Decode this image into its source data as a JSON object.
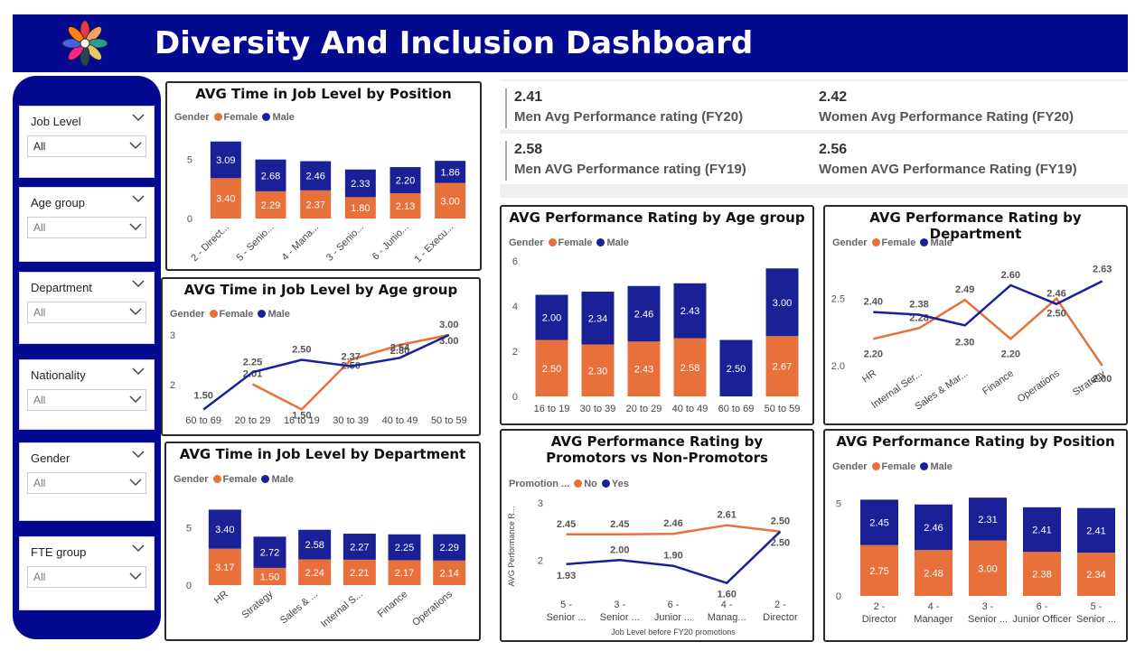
{
  "header": {
    "title": "Diversity And Inclusion Dashboard",
    "logo_icon": "colorful-flower-logo"
  },
  "filters": [
    {
      "label": "Job Level",
      "value": "All"
    },
    {
      "label": "Age group",
      "value": "All"
    },
    {
      "label": "Department",
      "value": "All"
    },
    {
      "label": "Nationality",
      "value": "All"
    },
    {
      "label": "Gender",
      "value": "All"
    },
    {
      "label": "FTE group",
      "value": "All"
    }
  ],
  "kpis": [
    {
      "value": "2.41",
      "label": "Men Avg Performance rating (FY20)"
    },
    {
      "value": "2.42",
      "label": "Women Avg Performance Rating (FY20)"
    },
    {
      "value": "2.58",
      "label": "Men AVG Performance rating (FY19)"
    },
    {
      "value": "2.56",
      "label": "Women AVG Performance Rating (FY19)"
    }
  ],
  "colors": {
    "female": "#e8703a",
    "male": "#1a2196",
    "banner": "#040a8f"
  },
  "legend": {
    "title": "Gender",
    "female": "Female",
    "male": "Male",
    "promo_title": "Promotion ...",
    "no": "No",
    "yes": "Yes"
  },
  "chart_data": [
    {
      "id": "pos_time",
      "type": "bar",
      "stacked": true,
      "title": "AVG Time in Job Level by Position",
      "categories": [
        "2 - Direct...",
        "5 - Senio...",
        "4 - Mana...",
        "3 - Senio...",
        "6 - Junio...",
        "1 - Execu..."
      ],
      "series": [
        {
          "name": "Female",
          "values": [
            3.4,
            2.29,
            2.37,
            1.8,
            2.13,
            3.0
          ]
        },
        {
          "name": "Male",
          "values": [
            3.09,
            2.68,
            2.46,
            2.33,
            2.2,
            1.86
          ]
        }
      ],
      "yticks": [
        "0",
        "5"
      ],
      "ylim": [
        0,
        7
      ]
    },
    {
      "id": "age_time",
      "type": "line",
      "title": "AVG Time in Job Level by Age group",
      "categories": [
        "60 to 69",
        "20 to 29",
        "16 to 19",
        "30 to 39",
        "40 to 49",
        "50 to 59"
      ],
      "series": [
        {
          "name": "Female",
          "values": [
            null,
            2.01,
            1.5,
            2.5,
            2.8,
            3.0
          ]
        },
        {
          "name": "Male",
          "values": [
            1.5,
            2.25,
            2.5,
            2.37,
            2.54,
            3.0
          ]
        }
      ],
      "yticks": [
        "2",
        "3"
      ],
      "ylim": [
        1.4,
        3.0
      ]
    },
    {
      "id": "dept_time",
      "type": "bar",
      "stacked": true,
      "title": "AVG Time in Job Level by Department",
      "categories": [
        "HR",
        "Strategy",
        "Sales & ...",
        "Internal S...",
        "Finance",
        "Operations"
      ],
      "series": [
        {
          "name": "Female",
          "values": [
            3.17,
            1.5,
            2.24,
            2.21,
            2.17,
            2.14
          ]
        },
        {
          "name": "Male",
          "values": [
            3.4,
            2.72,
            2.58,
            2.27,
            2.25,
            2.29
          ]
        }
      ],
      "yticks": [
        "0",
        "5"
      ],
      "ylim": [
        0,
        7
      ]
    },
    {
      "id": "age_perf",
      "type": "bar",
      "stacked": true,
      "title": "AVG Performance Rating by Age group",
      "categories": [
        "16 to 19",
        "30 to 39",
        "20 to 29",
        "40 to 49",
        "60 to 69",
        "50 to 59"
      ],
      "series": [
        {
          "name": "Female",
          "values": [
            2.5,
            2.3,
            2.43,
            2.58,
            0,
            2.67
          ]
        },
        {
          "name": "Male",
          "values": [
            2.0,
            2.34,
            2.46,
            2.43,
            2.5,
            3.0
          ]
        }
      ],
      "yticks": [
        "0",
        "2",
        "4",
        "6"
      ],
      "ylim": [
        0,
        6
      ]
    },
    {
      "id": "dept_perf",
      "type": "line",
      "title": "AVG Performance Rating by Department",
      "categories": [
        "HR",
        "Internal Ser...",
        "Sales & Mar...",
        "Finance",
        "Operations",
        "Strategy"
      ],
      "series": [
        {
          "name": "Female",
          "values": [
            2.2,
            2.28,
            2.49,
            2.2,
            2.5,
            2.0
          ]
        },
        {
          "name": "Male",
          "values": [
            2.4,
            2.38,
            2.3,
            2.6,
            2.46,
            2.63
          ]
        }
      ],
      "yticks": [
        "2.0",
        "2.5"
      ],
      "ylim": [
        2.0,
        2.7
      ]
    },
    {
      "id": "promo_perf",
      "type": "line",
      "title": "AVG Performance Rating by Promotors vs Non-Promotors",
      "xlabel": "Job Level before FY20 promotions",
      "ylabel": "AVG Performance R...",
      "categories": [
        "5 - Senior ...",
        "3 - Senior ...",
        "6 - Junior ...",
        "4 - Manag...",
        "2 - Director"
      ],
      "series": [
        {
          "name": "No",
          "values": [
            2.45,
            2.45,
            2.46,
            2.61,
            2.5
          ]
        },
        {
          "name": "Yes",
          "values": [
            1.93,
            2.0,
            1.9,
            1.6,
            2.5
          ]
        }
      ],
      "yticks": [
        "2",
        "3"
      ],
      "ylim": [
        1.5,
        3.0
      ]
    },
    {
      "id": "pos_perf",
      "type": "bar",
      "stacked": true,
      "title": "AVG Performance Rating by Position",
      "categories": [
        "2 - Director",
        "4 - Manager",
        "3 - Senior ...",
        "6 - Junior Officer",
        "5 - Senior ..."
      ],
      "series": [
        {
          "name": "Female",
          "values": [
            2.75,
            2.48,
            3.0,
            2.38,
            2.34
          ]
        },
        {
          "name": "Male",
          "values": [
            2.45,
            2.46,
            2.31,
            2.41,
            2.41
          ]
        }
      ],
      "yticks": [
        "0",
        "5"
      ],
      "ylim": [
        0,
        6
      ]
    }
  ]
}
